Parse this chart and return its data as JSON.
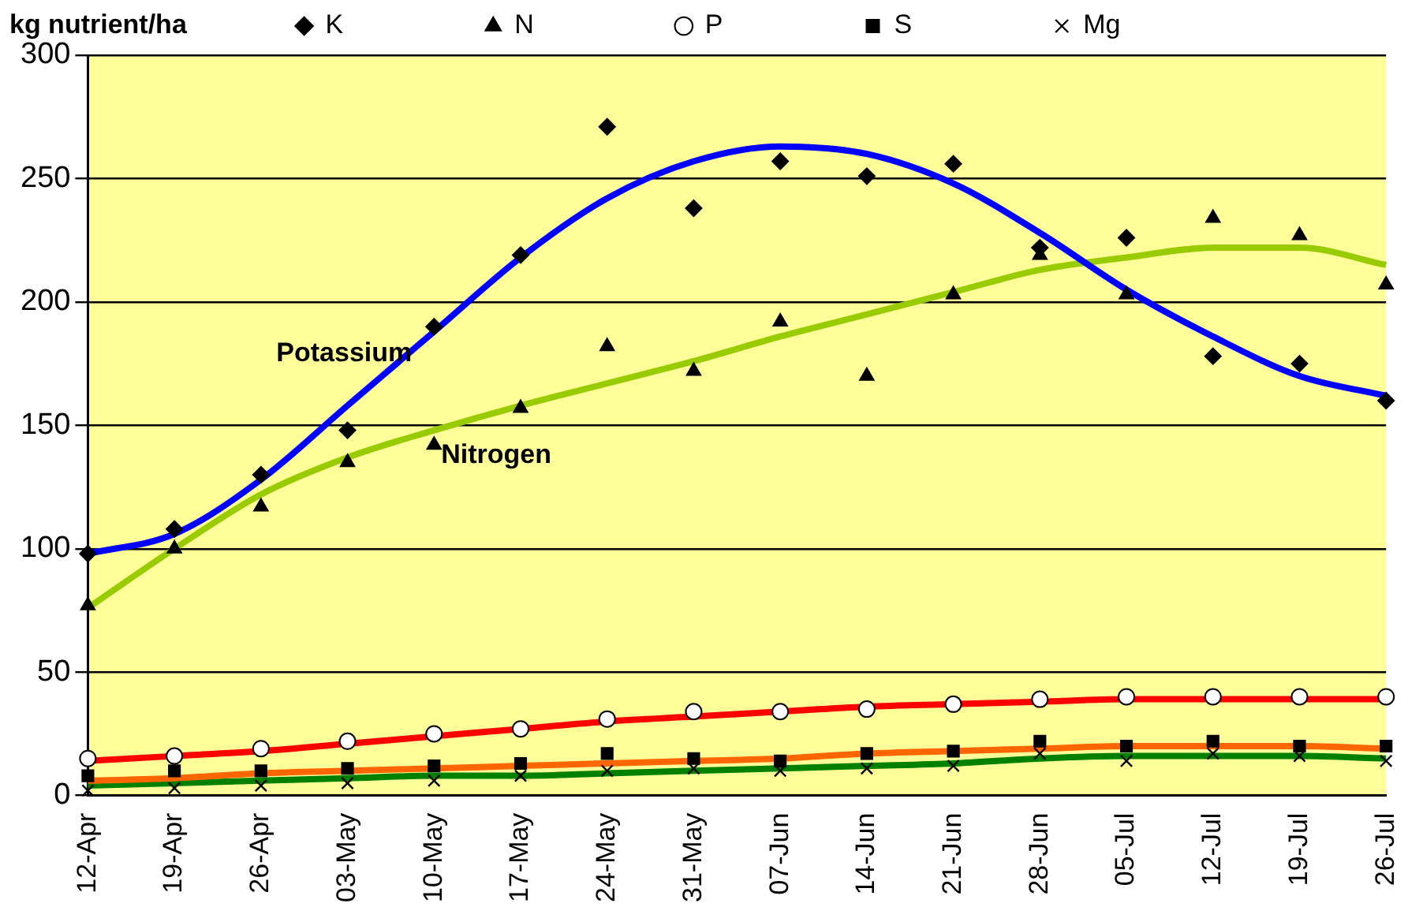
{
  "chart_data": {
    "type": "scatter",
    "ylabel": "kg nutrient/ha",
    "categories": [
      "12-Apr",
      "19-Apr",
      "26-Apr",
      "03-May",
      "10-May",
      "17-May",
      "24-May",
      "31-May",
      "07-Jun",
      "14-Jun",
      "21-Jun",
      "28-Jun",
      "05-Jul",
      "12-Jul",
      "19-Jul",
      "26-Jul"
    ],
    "series": [
      {
        "name": "K",
        "marker": "diamond",
        "color": "#000000",
        "values": [
          98,
          108,
          130,
          148,
          190,
          219,
          271,
          238,
          257,
          251,
          256,
          222,
          226,
          178,
          175,
          160
        ]
      },
      {
        "name": "N",
        "marker": "triangle",
        "color": "#000000",
        "values": [
          77,
          100,
          117,
          135,
          142,
          157,
          182,
          172,
          192,
          170,
          203,
          219,
          203,
          234,
          227,
          207
        ]
      },
      {
        "name": "P",
        "marker": "circle",
        "color": "#000000",
        "values": [
          15,
          16,
          19,
          22,
          25,
          27,
          31,
          34,
          34,
          35,
          37,
          39,
          40,
          40,
          40,
          40
        ]
      },
      {
        "name": "S",
        "marker": "square",
        "color": "#000000",
        "values": [
          8,
          10,
          10,
          11,
          12,
          13,
          17,
          15,
          14,
          17,
          18,
          22,
          20,
          22,
          20,
          20
        ]
      },
      {
        "name": "Mg",
        "marker": "cross",
        "color": "#000000",
        "values": [
          2,
          3,
          4,
          5,
          6,
          8,
          10,
          11,
          10,
          11,
          12,
          17,
          14,
          17,
          16,
          14
        ]
      },
      {
        "name": "Potassium",
        "type": "line",
        "marker": "none",
        "color": "#0000ff",
        "values": [
          98,
          106,
          128,
          158,
          188,
          218,
          242,
          257,
          263,
          260,
          248,
          228,
          205,
          186,
          170,
          162
        ]
      },
      {
        "name": "Nitrogen",
        "type": "line",
        "marker": "none",
        "color": "#99cc00",
        "values": [
          76,
          100,
          122,
          137,
          148,
          158,
          167,
          176,
          186,
          195,
          204,
          213,
          218,
          222,
          222,
          215
        ]
      },
      {
        "type": "line",
        "marker": "none",
        "color": "#ff0000",
        "values": [
          14,
          16,
          18,
          21,
          24,
          27,
          30,
          32,
          34,
          36,
          37,
          38,
          39,
          39,
          39,
          39
        ]
      },
      {
        "type": "line",
        "marker": "none",
        "color": "#ff6600",
        "values": [
          6,
          7,
          9,
          10,
          11,
          12,
          13,
          14,
          15,
          17,
          18,
          19,
          20,
          20,
          20,
          19
        ]
      },
      {
        "type": "line",
        "marker": "none",
        "color": "#008000",
        "values": [
          4,
          5,
          6,
          7,
          8,
          8,
          9,
          10,
          11,
          12,
          13,
          15,
          16,
          16,
          16,
          15
        ]
      }
    ],
    "ylim": [
      0,
      300
    ],
    "yticks": [
      0,
      50,
      100,
      150,
      200,
      250,
      300
    ],
    "grid": "y",
    "legend": "top",
    "line_style": "solid"
  }
}
